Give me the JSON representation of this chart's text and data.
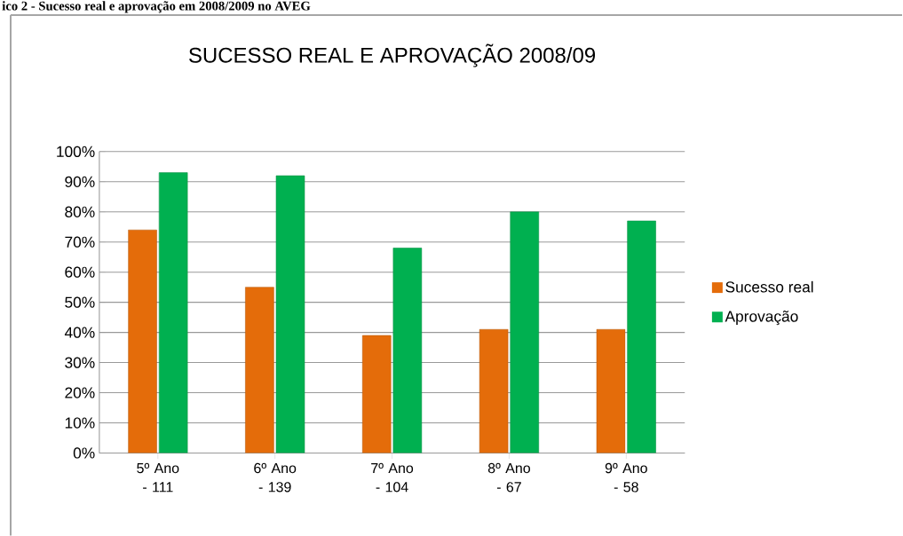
{
  "chart_data": {
    "type": "bar",
    "title": "SUCESSO REAL E APROVAÇÃO 2008/09",
    "annotations": [
      "ico 2 - Sucesso real e aprovação em 2008/2009 no AVEG"
    ],
    "categories": [
      "5º Ano - 111",
      "6º Ano - 139",
      "7º Ano - 104",
      "8º Ano - 67",
      "9º Ano - 58"
    ],
    "series": [
      {
        "name": "Sucesso real",
        "color": "#e46c0a",
        "values": [
          0.74,
          0.55,
          0.39,
          0.41,
          0.41
        ]
      },
      {
        "name": "Aprovação",
        "color": "#00b050",
        "values": [
          0.93,
          0.92,
          0.68,
          0.8,
          0.77
        ]
      }
    ],
    "ylim": [
      0,
      1
    ],
    "yticks": [
      {
        "value": 0,
        "label": "0%"
      },
      {
        "value": 0.1,
        "label": "10%"
      },
      {
        "value": 0.2,
        "label": "20%"
      },
      {
        "value": 0.3,
        "label": "30%"
      },
      {
        "value": 0.4,
        "label": "40%"
      },
      {
        "value": 0.5,
        "label": "50%"
      },
      {
        "value": 0.6,
        "label": "60%"
      },
      {
        "value": 0.7,
        "label": "70%"
      },
      {
        "value": 0.8,
        "label": "80%"
      },
      {
        "value": 0.9,
        "label": "90%"
      },
      {
        "value": 1,
        "label": "100%"
      }
    ],
    "grid": "y",
    "legend": "right"
  }
}
